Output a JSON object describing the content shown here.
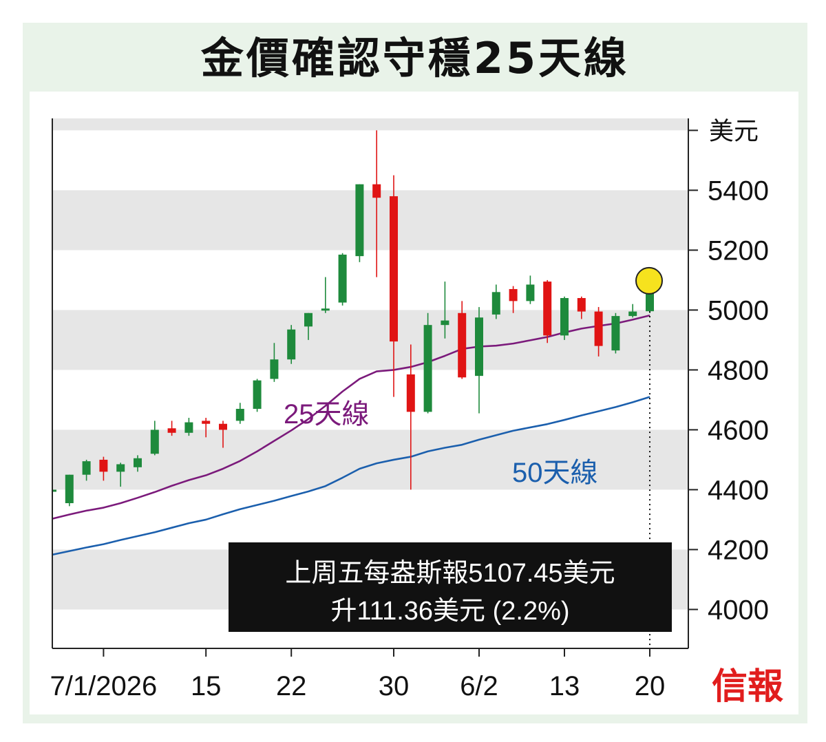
{
  "title": "金價確認守穩25天線",
  "logo": "信報",
  "chart_data": {
    "type": "candlestick",
    "title": "金價確認守穩25天線",
    "ylabel": "美元",
    "ylim": [
      3870,
      5640
    ],
    "yticks": [
      4000,
      4200,
      4400,
      4600,
      4800,
      5000,
      5200,
      5400
    ],
    "xticks": [
      {
        "index": 3,
        "label": "7/1/2026"
      },
      {
        "index": 9,
        "label": "15"
      },
      {
        "index": 14,
        "label": "22"
      },
      {
        "index": 20,
        "label": "30"
      },
      {
        "index": 25,
        "label": "6/2"
      },
      {
        "index": 30,
        "label": "13"
      },
      {
        "index": 35,
        "label": "20"
      }
    ],
    "candles": [
      {
        "o": 4395,
        "h": 4420,
        "l": 4370,
        "c": 4400
      },
      {
        "o": 4355,
        "h": 4450,
        "l": 4345,
        "c": 4450
      },
      {
        "o": 4450,
        "h": 4500,
        "l": 4430,
        "c": 4495
      },
      {
        "o": 4500,
        "h": 4510,
        "l": 4430,
        "c": 4460
      },
      {
        "o": 4460,
        "h": 4490,
        "l": 4410,
        "c": 4485
      },
      {
        "o": 4475,
        "h": 4515,
        "l": 4460,
        "c": 4505
      },
      {
        "o": 4520,
        "h": 4630,
        "l": 4515,
        "c": 4600
      },
      {
        "o": 4605,
        "h": 4630,
        "l": 4580,
        "c": 4590
      },
      {
        "o": 4590,
        "h": 4640,
        "l": 4580,
        "c": 4625
      },
      {
        "o": 4630,
        "h": 4640,
        "l": 4575,
        "c": 4620
      },
      {
        "o": 4620,
        "h": 4630,
        "l": 4540,
        "c": 4600
      },
      {
        "o": 4630,
        "h": 4690,
        "l": 4620,
        "c": 4670
      },
      {
        "o": 4670,
        "h": 4770,
        "l": 4660,
        "c": 4765
      },
      {
        "o": 4770,
        "h": 4890,
        "l": 4760,
        "c": 4835
      },
      {
        "o": 4835,
        "h": 4950,
        "l": 4820,
        "c": 4935
      },
      {
        "o": 4945,
        "h": 4990,
        "l": 4900,
        "c": 4990
      },
      {
        "o": 5000,
        "h": 5110,
        "l": 4990,
        "c": 5005
      },
      {
        "o": 5025,
        "h": 5190,
        "l": 5015,
        "c": 5185
      },
      {
        "o": 5180,
        "h": 5420,
        "l": 5160,
        "c": 5420
      },
      {
        "o": 5420,
        "h": 5600,
        "l": 5110,
        "c": 5375
      },
      {
        "o": 5380,
        "h": 5450,
        "l": 4710,
        "c": 4895
      },
      {
        "o": 4785,
        "h": 4885,
        "l": 4400,
        "c": 4660
      },
      {
        "o": 4660,
        "h": 4990,
        "l": 4655,
        "c": 4950
      },
      {
        "o": 4950,
        "h": 5095,
        "l": 4905,
        "c": 4965
      },
      {
        "o": 4990,
        "h": 5030,
        "l": 4770,
        "c": 4775
      },
      {
        "o": 4780,
        "h": 5010,
        "l": 4655,
        "c": 4975
      },
      {
        "o": 4985,
        "h": 5085,
        "l": 4970,
        "c": 5060
      },
      {
        "o": 5070,
        "h": 5080,
        "l": 4990,
        "c": 5030
      },
      {
        "o": 5030,
        "h": 5115,
        "l": 5020,
        "c": 5085
      },
      {
        "o": 5095,
        "h": 5100,
        "l": 4890,
        "c": 4915
      },
      {
        "o": 4915,
        "h": 5045,
        "l": 4900,
        "c": 5040
      },
      {
        "o": 5040,
        "h": 5045,
        "l": 4970,
        "c": 4995
      },
      {
        "o": 4995,
        "h": 5010,
        "l": 4845,
        "c": 4880
      },
      {
        "o": 4865,
        "h": 4990,
        "l": 4855,
        "c": 4980
      },
      {
        "o": 4980,
        "h": 5020,
        "l": 4975,
        "c": 4995
      },
      {
        "o": 4996,
        "h": 5110,
        "l": 4990,
        "c": 5107
      }
    ],
    "series": [
      {
        "name": "25天線",
        "color": "#7b1a7b",
        "values": [
          4303,
          4317,
          4330,
          4340,
          4355,
          4373,
          4392,
          4413,
          4432,
          4448,
          4470,
          4496,
          4528,
          4563,
          4598,
          4636,
          4680,
          4728,
          4770,
          4795,
          4800,
          4810,
          4826,
          4847,
          4870,
          4878,
          4881,
          4888,
          4899,
          4910,
          4925,
          4938,
          4947,
          4955,
          4968,
          4982
        ]
      },
      {
        "name": "50天線",
        "color": "#1b5fad",
        "values": [
          4183,
          4195,
          4207,
          4218,
          4232,
          4245,
          4258,
          4273,
          4288,
          4300,
          4318,
          4335,
          4349,
          4363,
          4379,
          4394,
          4412,
          4440,
          4470,
          4488,
          4500,
          4510,
          4528,
          4540,
          4550,
          4567,
          4582,
          4597,
          4608,
          4619,
          4633,
          4648,
          4662,
          4676,
          4692,
          4710
        ]
      }
    ],
    "colors": {
      "up": "#1e8a3c",
      "down": "#e01414",
      "band": "#e6e6e6"
    },
    "highlight": {
      "index": 35,
      "color": "#f6e21e"
    },
    "info_box": {
      "line1": "上周五每盎斯報5107.45美元",
      "line2": "升111.36美元 (2.2%)"
    }
  }
}
